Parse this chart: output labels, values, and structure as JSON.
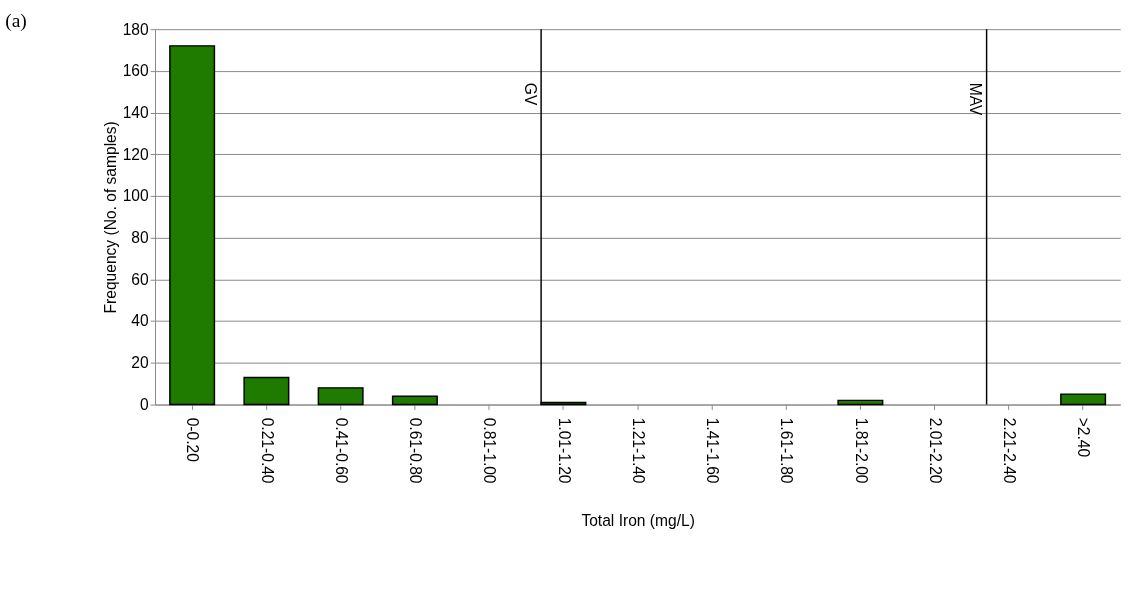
{
  "chart_data": {
    "type": "bar",
    "title": "(a)",
    "xlabel": "Total Iron (mg/L)",
    "ylabel": "Frequency (No. of samples)",
    "categories": [
      "0-0.20",
      "0.21-0.40",
      "0.41-0.60",
      "0.61-0.80",
      "0.81-1.00",
      "1.01-1.20",
      "1.21-1.40",
      "1.41-1.60",
      "1.61-1.80",
      "1.81-2.00",
      "2.01-2.20",
      "2.21-2.40",
      ">2.40"
    ],
    "values": [
      172,
      13,
      8,
      4,
      0,
      1,
      0,
      0,
      0,
      2,
      0,
      0,
      5
    ],
    "color": "#1f7a00",
    "ylim": [
      0,
      180
    ],
    "yticks": [
      0,
      20,
      40,
      60,
      80,
      100,
      120,
      140,
      160,
      180
    ],
    "grid": "y",
    "ref_lines": [
      {
        "axis": "x",
        "value": "1.01-1.20",
        "label": "GV",
        "color": "#000000"
      },
      {
        "axis": "x",
        "value": "2.21-2.40",
        "label": "MAV",
        "color": "#000000"
      }
    ]
  }
}
